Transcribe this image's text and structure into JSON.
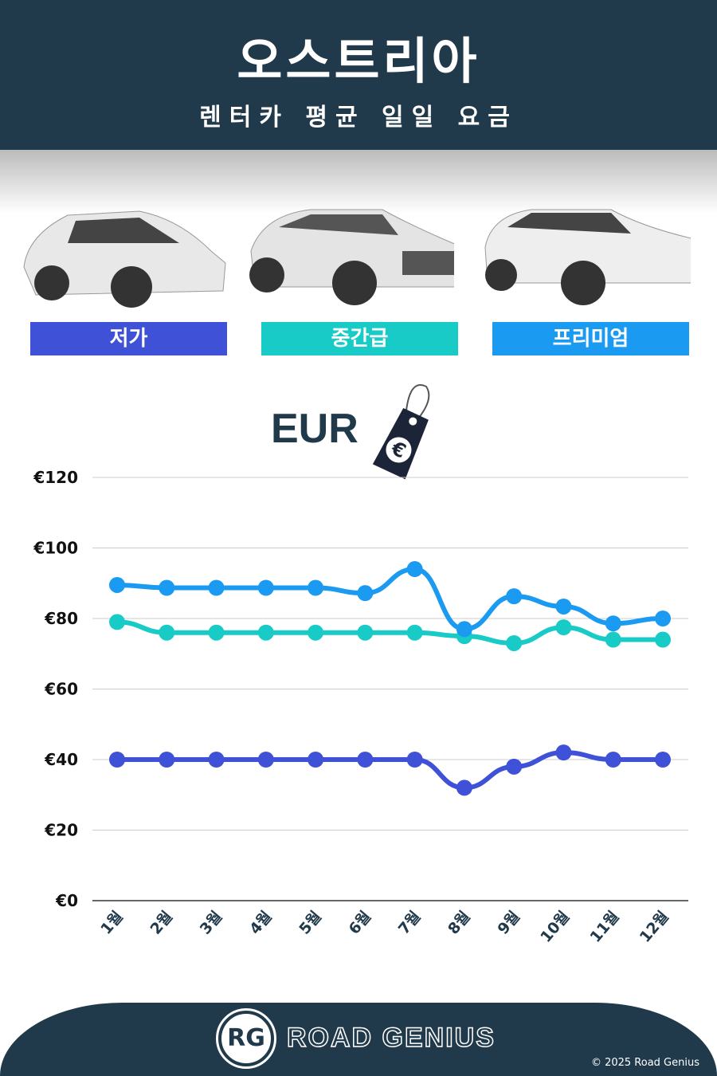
{
  "header": {
    "title": "오스트리아",
    "subtitle": "렌터카 평균 일일 요금"
  },
  "categories_labels": [
    {
      "label": "저가",
      "color": "#3f51d6"
    },
    {
      "label": "중간급",
      "color": "#19cbc6"
    },
    {
      "label": "프리미엄",
      "color": "#1a9af0"
    }
  ],
  "currency": {
    "label": "EUR",
    "tag_icon": "euro-price-tag-icon"
  },
  "footer": {
    "brand": "ROAD GENIUS",
    "logo": "RG",
    "copyright": "© 2025 Road Genius"
  },
  "chart_data": {
    "type": "line",
    "categories": [
      "1월",
      "2월",
      "3월",
      "4월",
      "5월",
      "6월",
      "7월",
      "8월",
      "9월",
      "10월",
      "11월",
      "12월"
    ],
    "ylim": [
      0,
      120
    ],
    "yticks": [
      "€0",
      "€20",
      "€40",
      "€60",
      "€80",
      "€100",
      "€120"
    ],
    "grid": true,
    "series": [
      {
        "name": "저가",
        "color": "#3f51d6",
        "values": [
          40,
          40,
          40,
          40,
          40,
          40,
          40,
          32,
          38,
          42,
          40,
          40
        ]
      },
      {
        "name": "중간급",
        "color": "#19cbc6",
        "values": [
          79,
          76,
          76,
          76,
          76,
          76,
          76,
          75,
          73,
          77.5,
          74,
          74
        ]
      },
      {
        "name": "프리미엄",
        "color": "#1a9af0",
        "values": [
          89.5,
          88.7,
          88.7,
          88.7,
          88.7,
          87.2,
          94,
          77,
          86.3,
          83.4,
          78.6,
          80
        ]
      }
    ]
  }
}
